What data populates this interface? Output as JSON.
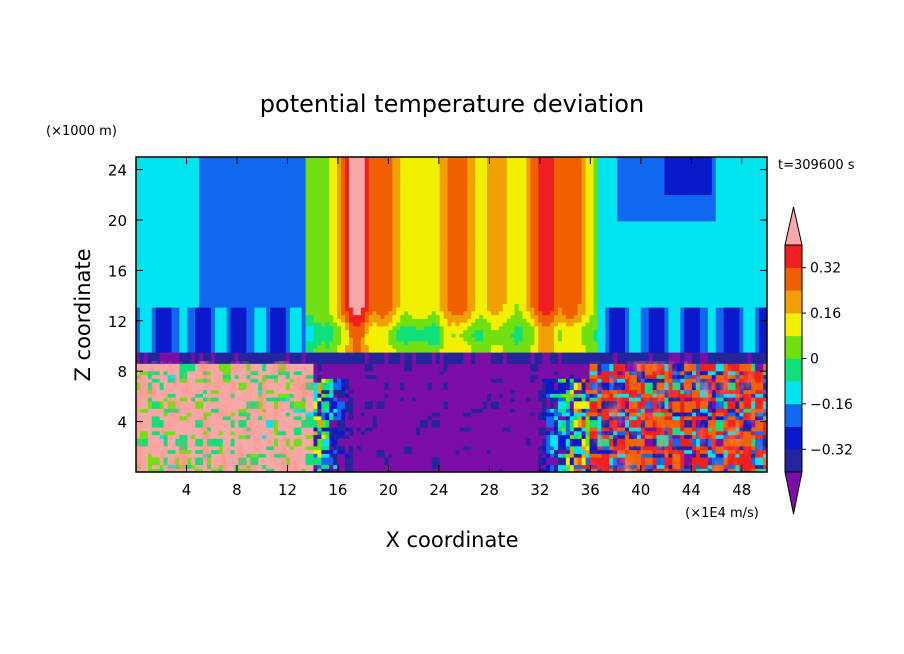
{
  "chart_data": {
    "type": "heatmap",
    "title": "potential temperature deviation",
    "xlabel": "X coordinate",
    "ylabel": "Z coordinate",
    "x_unit": "(×1E4 m/s)",
    "y_unit": "(×1000 m)",
    "time_label": "t=309600 s",
    "xlim": [
      0,
      50
    ],
    "ylim": [
      0,
      25
    ],
    "x_ticks": [
      4,
      8,
      12,
      16,
      20,
      24,
      28,
      32,
      36,
      40,
      44,
      48
    ],
    "y_ticks": [
      4,
      8,
      12,
      16,
      20,
      24
    ],
    "colorbar": {
      "levels": [
        -0.4,
        -0.32,
        -0.24,
        -0.16,
        -0.08,
        0,
        0.08,
        0.16,
        0.24,
        0.32,
        0.4
      ],
      "tick_labels": [
        "0.32",
        "0.16",
        "0",
        "−0.16",
        "−0.32"
      ],
      "tick_values": [
        0.32,
        0.16,
        0,
        -0.16,
        -0.32
      ],
      "colors": [
        "#7b0ea6",
        "#24249c",
        "#0a1aca",
        "#1068f0",
        "#00e4f0",
        "#10e07a",
        "#70e010",
        "#f0f000",
        "#f0a000",
        "#f06000",
        "#f02020",
        "#f8a8a8"
      ],
      "extend": "both"
    },
    "regions": [
      {
        "x": [
          0,
          14
        ],
        "z": [
          0,
          9
        ],
        "value": 0.42,
        "desc": "lower-left warm noisy layer"
      },
      {
        "x": [
          14,
          35
        ],
        "z": [
          0,
          8.5
        ],
        "value": -0.45,
        "desc": "lower-middle cold pool"
      },
      {
        "x": [
          36,
          50
        ],
        "z": [
          0,
          9
        ],
        "value": 0.3,
        "desc": "lower-right warm noisy layer"
      },
      {
        "x": [
          0,
          50
        ],
        "z": [
          8.5,
          10
        ],
        "value": -0.35,
        "desc": "thin cold band near tropopause"
      },
      {
        "x": [
          14,
          36
        ],
        "z": [
          10,
          25
        ],
        "value": 0.2,
        "desc": "warm upper columns"
      },
      {
        "x": [
          0,
          14
        ],
        "z": [
          10,
          25
        ],
        "value": -0.14,
        "desc": "upper-left cool region"
      },
      {
        "x": [
          36,
          50
        ],
        "z": [
          10,
          25
        ],
        "value": -0.14,
        "desc": "upper-right cool region"
      }
    ]
  }
}
